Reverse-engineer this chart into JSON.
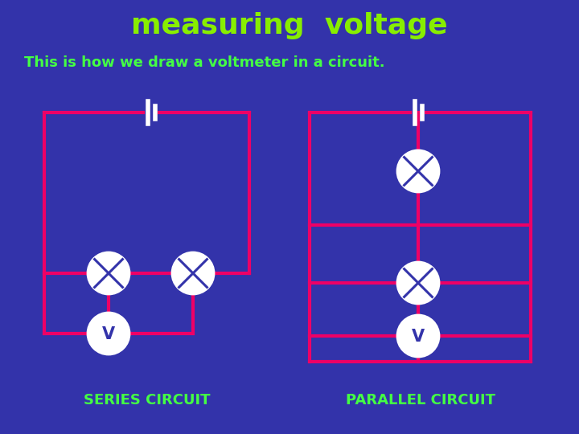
{
  "title": "measuring  voltage",
  "subtitle": "This is how we draw a voltmeter in a circuit.",
  "title_color": "#88ee00",
  "subtitle_color": "#44ff44",
  "background_color": "#3333aa",
  "circuit_color": "#ee0066",
  "component_fill": "white",
  "label_series": "SERIES CIRCUIT",
  "label_parallel": "PARALLEL CIRCUIT",
  "label_color": "#44ff44",
  "title_fontsize": 26,
  "subtitle_fontsize": 13,
  "label_fontsize": 13,
  "lw": 3.0
}
